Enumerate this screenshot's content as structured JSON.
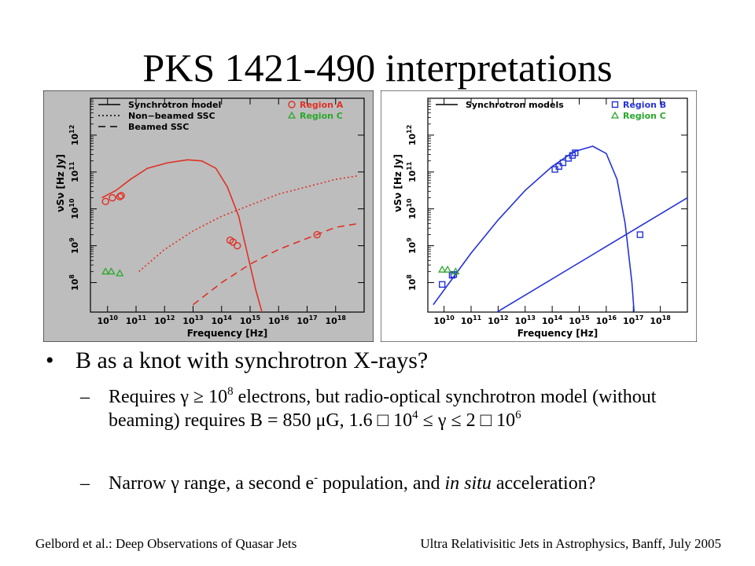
{
  "slide": {
    "title": "PKS 1421-490 interpretations",
    "bullet": {
      "symbol": "•",
      "text": "B as a knot with synchrotron X-rays?"
    },
    "subbullets": [
      {
        "dash": "–",
        "parts": [
          {
            "t": "Requires γ ≥ 10"
          },
          {
            "t": "8",
            "sup": true
          },
          {
            "t": " electrons, but radio-optical synchrotron model (without beaming) requires B = 850 μG, 1.6 □ 10"
          },
          {
            "t": "4",
            "sup": true
          },
          {
            "t": " ≤ γ ≤ 2 □ 10"
          },
          {
            "t": "6",
            "sup": true
          }
        ]
      },
      {
        "dash": "–",
        "parts": [
          {
            "t": "Narrow γ range, a second e"
          },
          {
            "t": "-",
            "sup": true
          },
          {
            "t": " population, and "
          },
          {
            "t": "in situ",
            "italic": true
          },
          {
            "t": " acceleration?"
          }
        ]
      }
    ],
    "footer_left": "Gelbord et al.: Deep Observations of Quasar Jets",
    "footer_right": "Ultra Relativisitic Jets in Astrophysics, Banff, July 2005"
  },
  "chart_data": [
    {
      "type": "line",
      "background": "#bdbdbd",
      "color": "#e03024",
      "xlabel": "Frequency [Hz]",
      "ylabel": "νSν [Hz Jy]",
      "xlim": [
        9.4,
        19.0
      ],
      "ylim": [
        7.2,
        13.0
      ],
      "x_ticks": [
        "10^10",
        "10^11",
        "10^12",
        "10^13",
        "10^14",
        "10^15",
        "10^16",
        "10^17",
        "10^18"
      ],
      "y_ticks": [
        "10^8",
        "10^9",
        "10^10",
        "10^11",
        "10^12"
      ],
      "legend_lines": [
        "Synchrotron model",
        "Non−beamed SSC",
        "Beamed SSC"
      ],
      "legend_points": [
        {
          "label": "Region A",
          "color": "#e03024",
          "marker": "circle"
        },
        {
          "label": "Region C",
          "color": "#2aa82a",
          "marker": "triangle"
        }
      ],
      "series": [
        {
          "name": "Synchrotron model",
          "style": "solid",
          "x": [
            9.8,
            10.3,
            10.8,
            11.4,
            12.1,
            12.8,
            13.3,
            13.8,
            14.2,
            14.6,
            14.9,
            15.2,
            15.7
          ],
          "y": [
            10.3,
            10.5,
            10.8,
            11.1,
            11.25,
            11.33,
            11.3,
            11.1,
            10.6,
            9.8,
            8.8,
            7.8,
            6.4
          ]
        },
        {
          "name": "Non−beamed SSC",
          "style": "dotted",
          "x": [
            11.1,
            12.0,
            13.0,
            14.0,
            15.0,
            16.0,
            17.0,
            18.0,
            18.8
          ],
          "y": [
            8.3,
            8.9,
            9.4,
            9.8,
            10.1,
            10.4,
            10.6,
            10.8,
            10.9
          ]
        },
        {
          "name": "Beamed SSC",
          "style": "dashed",
          "x": [
            13.0,
            14.0,
            15.0,
            16.0,
            17.0,
            18.0,
            18.8
          ],
          "y": [
            7.4,
            8.0,
            8.5,
            8.9,
            9.2,
            9.5,
            9.6
          ]
        }
      ],
      "points": [
        {
          "x": 9.93,
          "y": 10.2,
          "series": "Region A"
        },
        {
          "x": 10.17,
          "y": 10.3,
          "series": "Region A"
        },
        {
          "x": 10.43,
          "y": 10.33,
          "series": "Region A"
        },
        {
          "x": 10.48,
          "y": 10.36,
          "series": "Region A"
        },
        {
          "x": 14.3,
          "y": 9.15,
          "series": "Region A"
        },
        {
          "x": 14.4,
          "y": 9.1,
          "series": "Region A"
        },
        {
          "x": 14.55,
          "y": 9.0,
          "series": "Region A"
        },
        {
          "x": 17.35,
          "y": 9.3,
          "series": "Region A"
        },
        {
          "x": 9.93,
          "y": 8.3,
          "series": "Region C"
        },
        {
          "x": 10.13,
          "y": 8.3,
          "series": "Region C"
        },
        {
          "x": 10.43,
          "y": 8.25,
          "series": "Region C"
        }
      ]
    },
    {
      "type": "line",
      "background": "#ffffff",
      "color": "#2433d8",
      "xlabel": "Frequency [Hz]",
      "ylabel": "νSν [Hz Jy]",
      "xlim": [
        9.4,
        19.0
      ],
      "ylim": [
        7.2,
        13.0
      ],
      "x_ticks": [
        "10^10",
        "10^11",
        "10^12",
        "10^13",
        "10^14",
        "10^15",
        "10^16",
        "10^17",
        "10^18"
      ],
      "y_ticks": [
        "10^8",
        "10^9",
        "10^10",
        "10^11",
        "10^12"
      ],
      "legend_lines": [
        "Synchrotron models"
      ],
      "legend_points": [
        {
          "label": "Region B",
          "color": "#2433d8",
          "marker": "square"
        },
        {
          "label": "Region C",
          "color": "#2aa82a",
          "marker": "triangle"
        }
      ],
      "series": [
        {
          "name": "Synchrotron models",
          "style": "solid",
          "x": [
            9.6,
            10.2,
            11.0,
            12.0,
            13.0,
            14.0,
            14.8,
            15.5,
            16.0,
            16.4,
            16.7,
            16.95,
            17.1
          ],
          "y": [
            7.4,
            8.0,
            8.8,
            9.7,
            10.5,
            11.15,
            11.55,
            11.7,
            11.5,
            10.8,
            9.6,
            8.0,
            6.5
          ]
        },
        {
          "name": "Synchrotron models",
          "style": "solid",
          "x": [
            11.5,
            19.0
          ],
          "y": [
            7.0,
            10.3
          ]
        }
      ],
      "points": [
        {
          "x": 9.93,
          "y": 7.95,
          "series": "Region B"
        },
        {
          "x": 10.3,
          "y": 8.2,
          "series": "Region B"
        },
        {
          "x": 10.36,
          "y": 8.22,
          "series": "Region B"
        },
        {
          "x": 14.1,
          "y": 11.07,
          "series": "Region B"
        },
        {
          "x": 14.25,
          "y": 11.15,
          "series": "Region B"
        },
        {
          "x": 14.4,
          "y": 11.25,
          "series": "Region B"
        },
        {
          "x": 14.6,
          "y": 11.37,
          "series": "Region B"
        },
        {
          "x": 14.75,
          "y": 11.45,
          "series": "Region B"
        },
        {
          "x": 14.85,
          "y": 11.52,
          "series": "Region B"
        },
        {
          "x": 17.25,
          "y": 9.3,
          "series": "Region B"
        },
        {
          "x": 9.93,
          "y": 8.35,
          "series": "Region C"
        },
        {
          "x": 10.13,
          "y": 8.35,
          "series": "Region C"
        },
        {
          "x": 10.43,
          "y": 8.3,
          "series": "Region C"
        }
      ]
    }
  ]
}
